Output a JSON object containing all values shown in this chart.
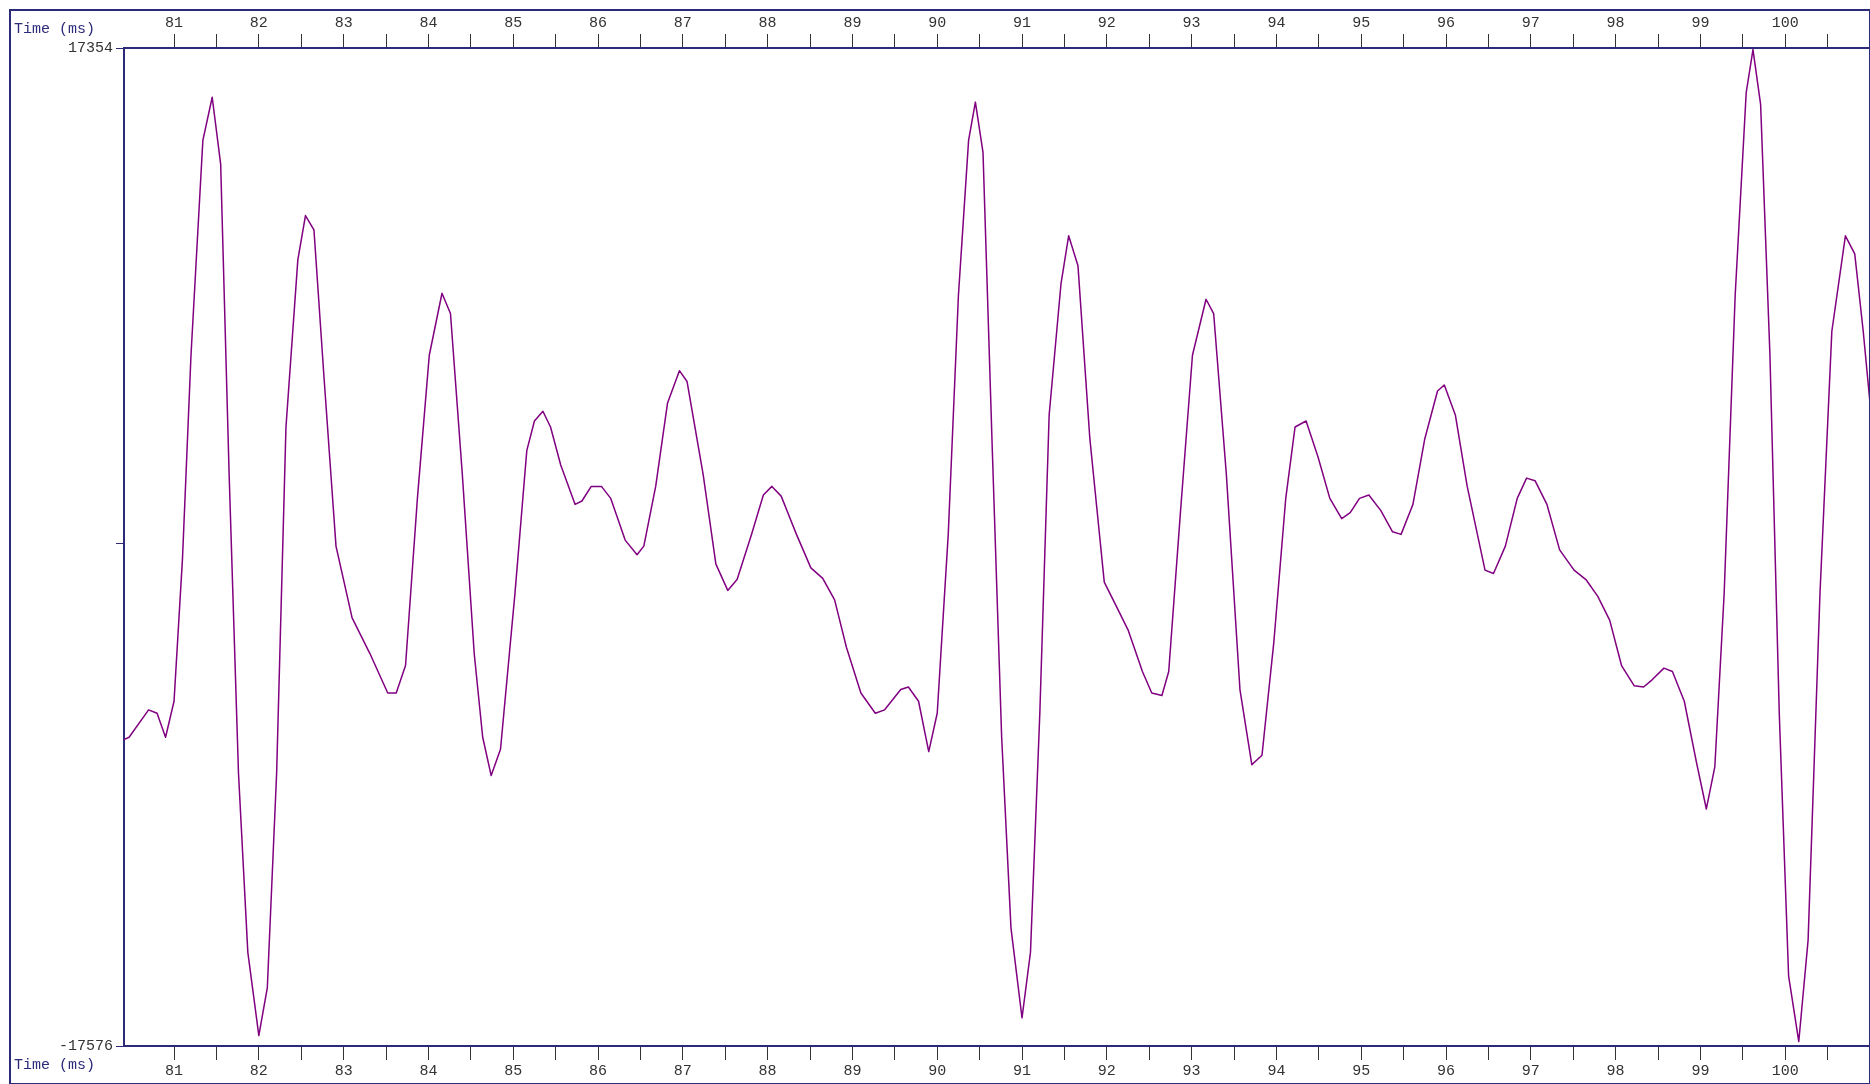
{
  "chart_data": {
    "type": "line",
    "xlabel": "Time (ms)",
    "x2label": "Time (ms)",
    "x": [
      80.41,
      80.47,
      80.7,
      80.8,
      80.9,
      81.0,
      81.1,
      81.2,
      81.34,
      81.45,
      81.55,
      81.65,
      81.76,
      81.87,
      82.0,
      82.1,
      82.21,
      82.32,
      82.46,
      82.55,
      82.65,
      82.77,
      82.91,
      83.1,
      83.31,
      83.52,
      83.62,
      83.73,
      83.87,
      84.01,
      84.16,
      84.26,
      84.4,
      84.54,
      84.64,
      84.74,
      84.85,
      85.02,
      85.16,
      85.25,
      85.35,
      85.44,
      85.56,
      85.73,
      85.81,
      85.92,
      86.04,
      86.15,
      86.32,
      86.46,
      86.54,
      86.68,
      86.82,
      86.96,
      87.05,
      87.24,
      87.39,
      87.53,
      87.64,
      87.81,
      87.95,
      88.05,
      88.16,
      88.34,
      88.51,
      88.65,
      88.79,
      88.93,
      89.1,
      89.27,
      89.38,
      89.57,
      89.66,
      89.78,
      89.9,
      90.0,
      90.13,
      90.25,
      90.37,
      90.45,
      90.54,
      90.65,
      90.76,
      90.87,
      91.0,
      91.1,
      91.21,
      91.32,
      91.46,
      91.55,
      91.66,
      91.8,
      91.97,
      92.11,
      92.25,
      92.42,
      92.53,
      92.65,
      92.73,
      92.87,
      93.01,
      93.17,
      93.26,
      93.41,
      93.57,
      93.71,
      93.83,
      93.97,
      94.11,
      94.22,
      94.35,
      94.49,
      94.63,
      94.77,
      94.87,
      94.98,
      95.09,
      95.23,
      95.37,
      95.47,
      95.61,
      95.75,
      95.9,
      95.98,
      96.11,
      96.25,
      96.46,
      96.56,
      96.7,
      96.84,
      96.95,
      97.05,
      97.19,
      97.34,
      97.51,
      97.65,
      97.79,
      97.93,
      98.07,
      98.22,
      98.33,
      98.43,
      98.57,
      98.67,
      98.81,
      98.95,
      99.07,
      99.17,
      99.28,
      99.41,
      99.54,
      99.62,
      99.71,
      99.82,
      99.93,
      100.04,
      100.16,
      100.27,
      100.41,
      100.55,
      100.71,
      100.82,
      100.92,
      101.0
    ],
    "series": [
      {
        "color": "#800080",
        "values": [
          -6850,
          -6770,
          -5810,
          -5930,
          -6770,
          -5510,
          -500,
          6600,
          14120,
          15630,
          13290,
          2420,
          -8020,
          -14290,
          -17210,
          -15540,
          -8020,
          4090,
          9940,
          11490,
          10990,
          5770,
          -80,
          -2590,
          -3840,
          -5220,
          -5220,
          -4260,
          1590,
          6600,
          8770,
          8060,
          2420,
          -3840,
          -6770,
          -8110,
          -7190,
          -1750,
          3260,
          4300,
          4640,
          4090,
          2760,
          1380,
          1500,
          2010,
          2010,
          1590,
          130,
          -380,
          -80,
          2010,
          4930,
          6060,
          5680,
          2420,
          -710,
          -1630,
          -1250,
          330,
          1710,
          2010,
          1670,
          330,
          -840,
          -1210,
          -1960,
          -3630,
          -5220,
          -5930,
          -5810,
          -5100,
          -5010,
          -5510,
          -7270,
          -5930,
          330,
          8690,
          14120,
          15460,
          13700,
          3260,
          -6770,
          -13450,
          -16590,
          -14290,
          -5930,
          4510,
          9110,
          10780,
          9730,
          3680,
          -1340,
          -2170,
          -3010,
          -4470,
          -5220,
          -5310,
          -4470,
          1170,
          6600,
          8560,
          8060,
          2420,
          -5100,
          -7730,
          -7400,
          -3430,
          1590,
          4090,
          4300,
          3050,
          1590,
          880,
          1090,
          1590,
          1710,
          1170,
          420,
          330,
          1380,
          3680,
          5350,
          5560,
          4510,
          2010,
          -920,
          -1040,
          -80,
          1590,
          2300,
          2210,
          1380,
          -210,
          -920,
          -1250,
          -1840,
          -2670,
          -4260,
          -4970,
          -5010,
          -4760,
          -4350,
          -4470,
          -5510,
          -7600,
          -9280,
          -7810,
          -1750,
          8690,
          15790,
          17300,
          15380,
          6600,
          -5930,
          -15120,
          -17420,
          -13870,
          -1750,
          7440,
          10780,
          10150,
          7440,
          4930
        ]
      }
    ],
    "xlim": [
      80.41,
      101.0
    ],
    "xticks": [
      81,
      {
        "value": 81.5,
        "label": null
      },
      82,
      {
        "value": 82.5,
        "label": null
      },
      83,
      {
        "value": 83.5,
        "label": null
      },
      84,
      {
        "value": 84.5,
        "label": null
      },
      85,
      {
        "value": 85.5,
        "label": null
      },
      86,
      {
        "value": 86.5,
        "label": null
      },
      87,
      {
        "value": 87.5,
        "label": null
      },
      88,
      {
        "value": 88.5,
        "label": null
      },
      89,
      {
        "value": 89.5,
        "label": null
      },
      90,
      {
        "value": 90.5,
        "label": null
      },
      91,
      {
        "value": 91.5,
        "label": null
      },
      92,
      {
        "value": 92.5,
        "label": null
      },
      93,
      {
        "value": 93.5,
        "label": null
      },
      94,
      {
        "value": 94.5,
        "label": null
      },
      95,
      {
        "value": 95.5,
        "label": null
      },
      96,
      {
        "value": 96.5,
        "label": null
      },
      97,
      {
        "value": 97.5,
        "label": null
      },
      98,
      {
        "value": 98.5,
        "label": null
      },
      99,
      {
        "value": 99.5,
        "label": null
      },
      100,
      {
        "value": 100.5,
        "label": null
      }
    ],
    "x2lim": [
      80.41,
      101.0
    ],
    "x2ticks": [
      81,
      {
        "value": 81.5,
        "label": null
      },
      82,
      {
        "value": 82.5,
        "label": null
      },
      83,
      {
        "value": 83.5,
        "label": null
      },
      84,
      {
        "value": 84.5,
        "label": null
      },
      85,
      {
        "value": 85.5,
        "label": null
      },
      86,
      {
        "value": 86.5,
        "label": null
      },
      87,
      {
        "value": 87.5,
        "label": null
      },
      88,
      {
        "value": 88.5,
        "label": null
      },
      89,
      {
        "value": 89.5,
        "label": null
      },
      90,
      {
        "value": 90.5,
        "label": null
      },
      91,
      {
        "value": 91.5,
        "label": null
      },
      92,
      {
        "value": 92.5,
        "label": null
      },
      93,
      {
        "value": 93.5,
        "label": null
      },
      94,
      {
        "value": 94.5,
        "label": null
      },
      95,
      {
        "value": 95.5,
        "label": null
      },
      96,
      {
        "value": 96.5,
        "label": null
      },
      97,
      {
        "value": 97.5,
        "label": null
      },
      98,
      {
        "value": 98.5,
        "label": null
      },
      99,
      {
        "value": 99.5,
        "label": null
      },
      100,
      {
        "value": 100.5,
        "label": null
      }
    ],
    "ylim": [
      -17576,
      17354
    ],
    "yticks": [
      17354,
      {
        "value": 0,
        "label": null
      },
      -17576
    ]
  }
}
